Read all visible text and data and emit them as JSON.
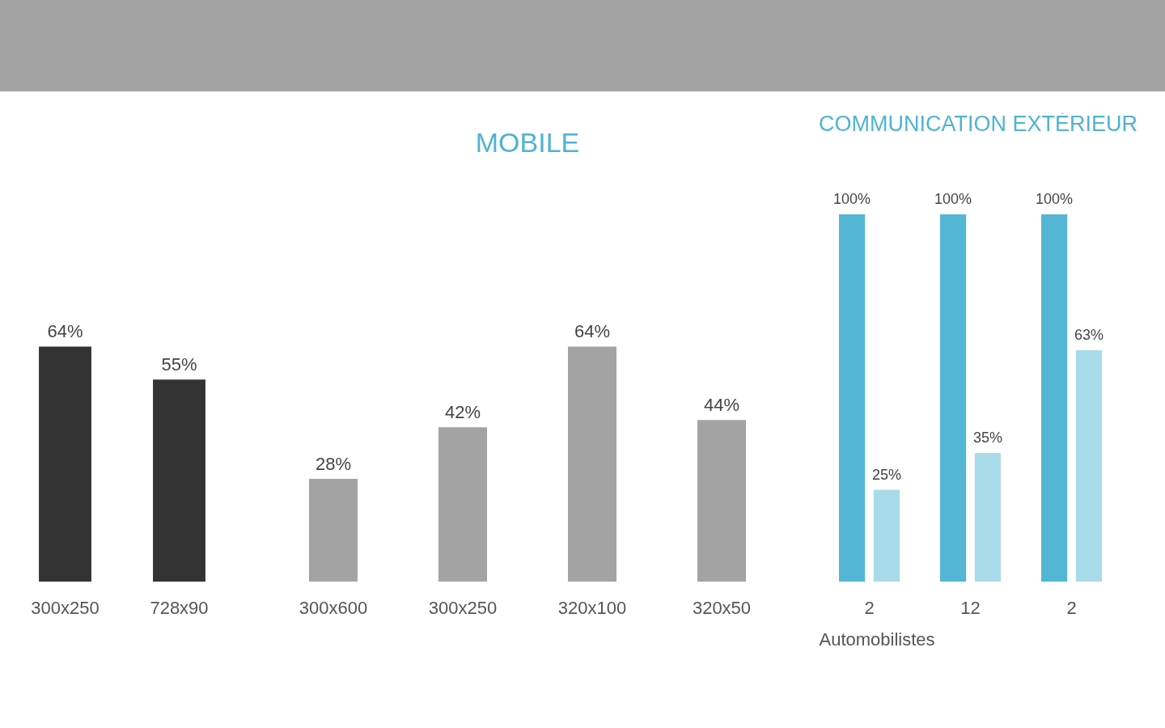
{
  "chart_data": [
    {
      "type": "bar",
      "categories": [
        "300x250",
        "728x90"
      ],
      "tick_labels": "x",
      "series": [
        {
          "color": "#333333",
          "values": [
            64,
            55
          ],
          "value_labels": [
            "64%",
            "55%"
          ]
        }
      ]
    },
    {
      "type": "bar",
      "title": "MOBILE",
      "categories": [
        "300x600",
        "300x250",
        "320x100",
        "320x50"
      ],
      "tick_labels": "x",
      "series": [
        {
          "color": "#a3a3a3",
          "values": [
            28,
            42,
            64,
            44
          ],
          "value_labels": [
            "28%",
            "42%",
            "64%",
            "44%"
          ]
        }
      ]
    },
    {
      "type": "bar",
      "title": "COMMUNICATION EXTÉRIEUR",
      "categories": [
        "2",
        "12",
        "2"
      ],
      "tick_labels": "x",
      "annotations": [
        "Automobilistes"
      ],
      "series": [
        {
          "color": "#53b6d5",
          "values": [
            100,
            100,
            100
          ],
          "value_labels": [
            "100%",
            "100%",
            "100%"
          ]
        },
        {
          "color": "#a8dbe9",
          "values": [
            25,
            35,
            63
          ],
          "value_labels": [
            "25%",
            "35%",
            "63%"
          ]
        }
      ]
    }
  ]
}
